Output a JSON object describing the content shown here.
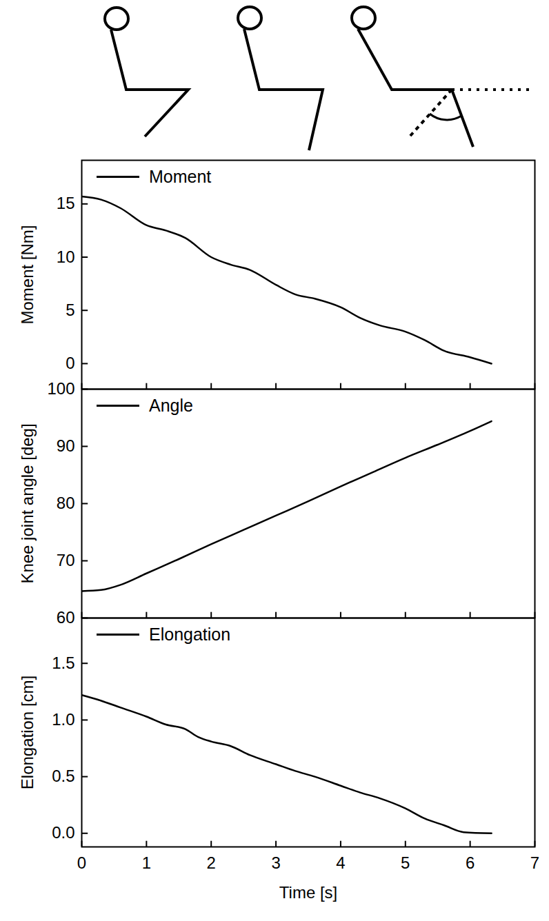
{
  "chart_data": [
    {
      "type": "line",
      "x": [
        0,
        0.3,
        0.6,
        1,
        1.3,
        1.6,
        2,
        2.3,
        2.6,
        3,
        3.3,
        3.6,
        4,
        4.3,
        4.6,
        5,
        5.3,
        5.6,
        6,
        6.33
      ],
      "series": [
        {
          "name": "Moment",
          "color": "#000000",
          "values": [
            15.7,
            15.4,
            14.6,
            13,
            12.5,
            11.8,
            10,
            9.3,
            8.8,
            7.4,
            6.5,
            6.1,
            5.3,
            4.3,
            3.6,
            3.0,
            2.2,
            1.2,
            0.6,
            0
          ]
        }
      ],
      "xlim": [
        0,
        7
      ],
      "xticks": [
        0,
        1,
        2,
        3,
        4,
        5,
        6,
        7
      ],
      "ylim": [
        -2.4,
        19.1
      ],
      "yticks": [
        0,
        5,
        10,
        15
      ],
      "ylabel": "Moment [Nm]",
      "legend": "top-left",
      "tick_labels": "y"
    },
    {
      "type": "line",
      "x": [
        0,
        0.3,
        0.6,
        1,
        1.5,
        2,
        2.5,
        3,
        3.5,
        4,
        4.5,
        5,
        5.5,
        6,
        6.33
      ],
      "series": [
        {
          "name": "Angle",
          "color": "#000000",
          "values": [
            64.7,
            64.9,
            65.8,
            67.8,
            70.3,
            72.9,
            75.4,
            77.9,
            80.4,
            83,
            85.5,
            88,
            90.3,
            92.7,
            94.4
          ]
        }
      ],
      "xlim": [
        0,
        7
      ],
      "xticks": [
        0,
        1,
        2,
        3,
        4,
        5,
        6,
        7
      ],
      "ylim": [
        60,
        100
      ],
      "yticks": [
        60,
        70,
        80,
        90,
        100
      ],
      "ylabel": "Knee joint angle [deg]",
      "legend": "top-left",
      "tick_labels": "y"
    },
    {
      "type": "line",
      "x": [
        0,
        0.3,
        0.6,
        1,
        1.3,
        1.6,
        1.8,
        2,
        2.3,
        2.6,
        3,
        3.3,
        3.6,
        4,
        4.3,
        4.6,
        5,
        5.3,
        5.6,
        5.9,
        6.33
      ],
      "series": [
        {
          "name": "Elongation",
          "color": "#000000",
          "values": [
            1.22,
            1.17,
            1.11,
            1.03,
            0.96,
            0.92,
            0.85,
            0.81,
            0.77,
            0.69,
            0.61,
            0.55,
            0.5,
            0.42,
            0.36,
            0.31,
            0.22,
            0.13,
            0.07,
            0.01,
            0
          ]
        }
      ],
      "xlim": [
        0,
        7
      ],
      "xticks": [
        0,
        1,
        2,
        3,
        4,
        5,
        6,
        7
      ],
      "ylim": [
        -0.12,
        1.9
      ],
      "yticks": [
        {
          "value": 0,
          "label": "0.0"
        },
        0.5,
        {
          "value": 1,
          "label": "1.0"
        },
        1.5
      ],
      "xlabel": "Time [s]",
      "ylabel": "Elongation [cm]",
      "legend": "top-left"
    }
  ]
}
